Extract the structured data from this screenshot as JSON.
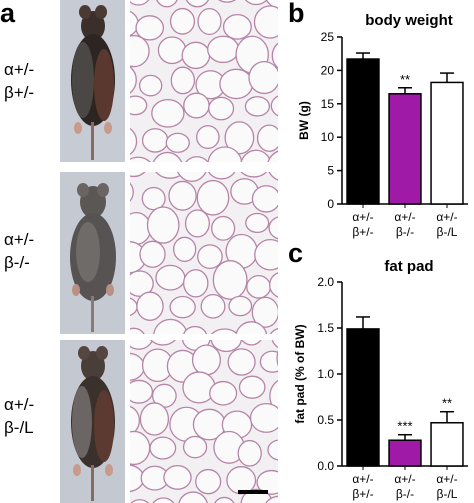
{
  "panels": {
    "a": {
      "letter": "a"
    },
    "b": {
      "letter": "b"
    },
    "c": {
      "letter": "c"
    }
  },
  "genotypes": [
    {
      "line1": "α+/-",
      "line2": "β+/-"
    },
    {
      "line1": "α+/-",
      "line2": "β-/-"
    },
    {
      "line1": "α+/-",
      "line2": "β-/L"
    }
  ],
  "colors": {
    "black_bar": "#000000",
    "purple_bar": "#a01aa8",
    "white_bar": "#ffffff"
  },
  "chart_data": [
    {
      "type": "bar",
      "panel": "b",
      "title": "body weight",
      "ylabel": "BW (g)",
      "xlabel": "",
      "categories": [
        {
          "line1": "α+/-",
          "line2": "β+/-"
        },
        {
          "line1": "α+/-",
          "line2": "β-/-"
        },
        {
          "line1": "α+/-",
          "line2": "β-/L"
        }
      ],
      "values": [
        21.7,
        16.5,
        18.2
      ],
      "errors": [
        0.9,
        0.9,
        1.4
      ],
      "annotations": [
        "",
        "**",
        ""
      ],
      "bar_colors": [
        "#000000",
        "#a01aa8",
        "#ffffff"
      ],
      "ylim": [
        0,
        25
      ],
      "yticks": [
        "0",
        "5",
        "10",
        "15",
        "20",
        "25"
      ],
      "tick_values": [
        0,
        5,
        10,
        15,
        20,
        25
      ],
      "grid": false
    },
    {
      "type": "bar",
      "panel": "c",
      "title": "fat pad",
      "ylabel": "fat pad (% of BW)",
      "xlabel": "",
      "categories": [
        {
          "line1": "α+/-",
          "line2": "β+/-"
        },
        {
          "line1": "α+/-",
          "line2": "β-/-"
        },
        {
          "line1": "α+/-",
          "line2": "β-/L"
        }
      ],
      "values": [
        1.49,
        0.28,
        0.47
      ],
      "errors": [
        0.13,
        0.06,
        0.12
      ],
      "annotations": [
        "",
        "***",
        "**"
      ],
      "bar_colors": [
        "#000000",
        "#a01aa8",
        "#ffffff"
      ],
      "ylim": [
        0,
        2.0
      ],
      "yticks": [
        "0.0",
        "0.5",
        "1.0",
        "1.5",
        "2.0"
      ],
      "tick_values": [
        0,
        0.5,
        1.0,
        1.5,
        2.0
      ],
      "grid": false
    }
  ]
}
